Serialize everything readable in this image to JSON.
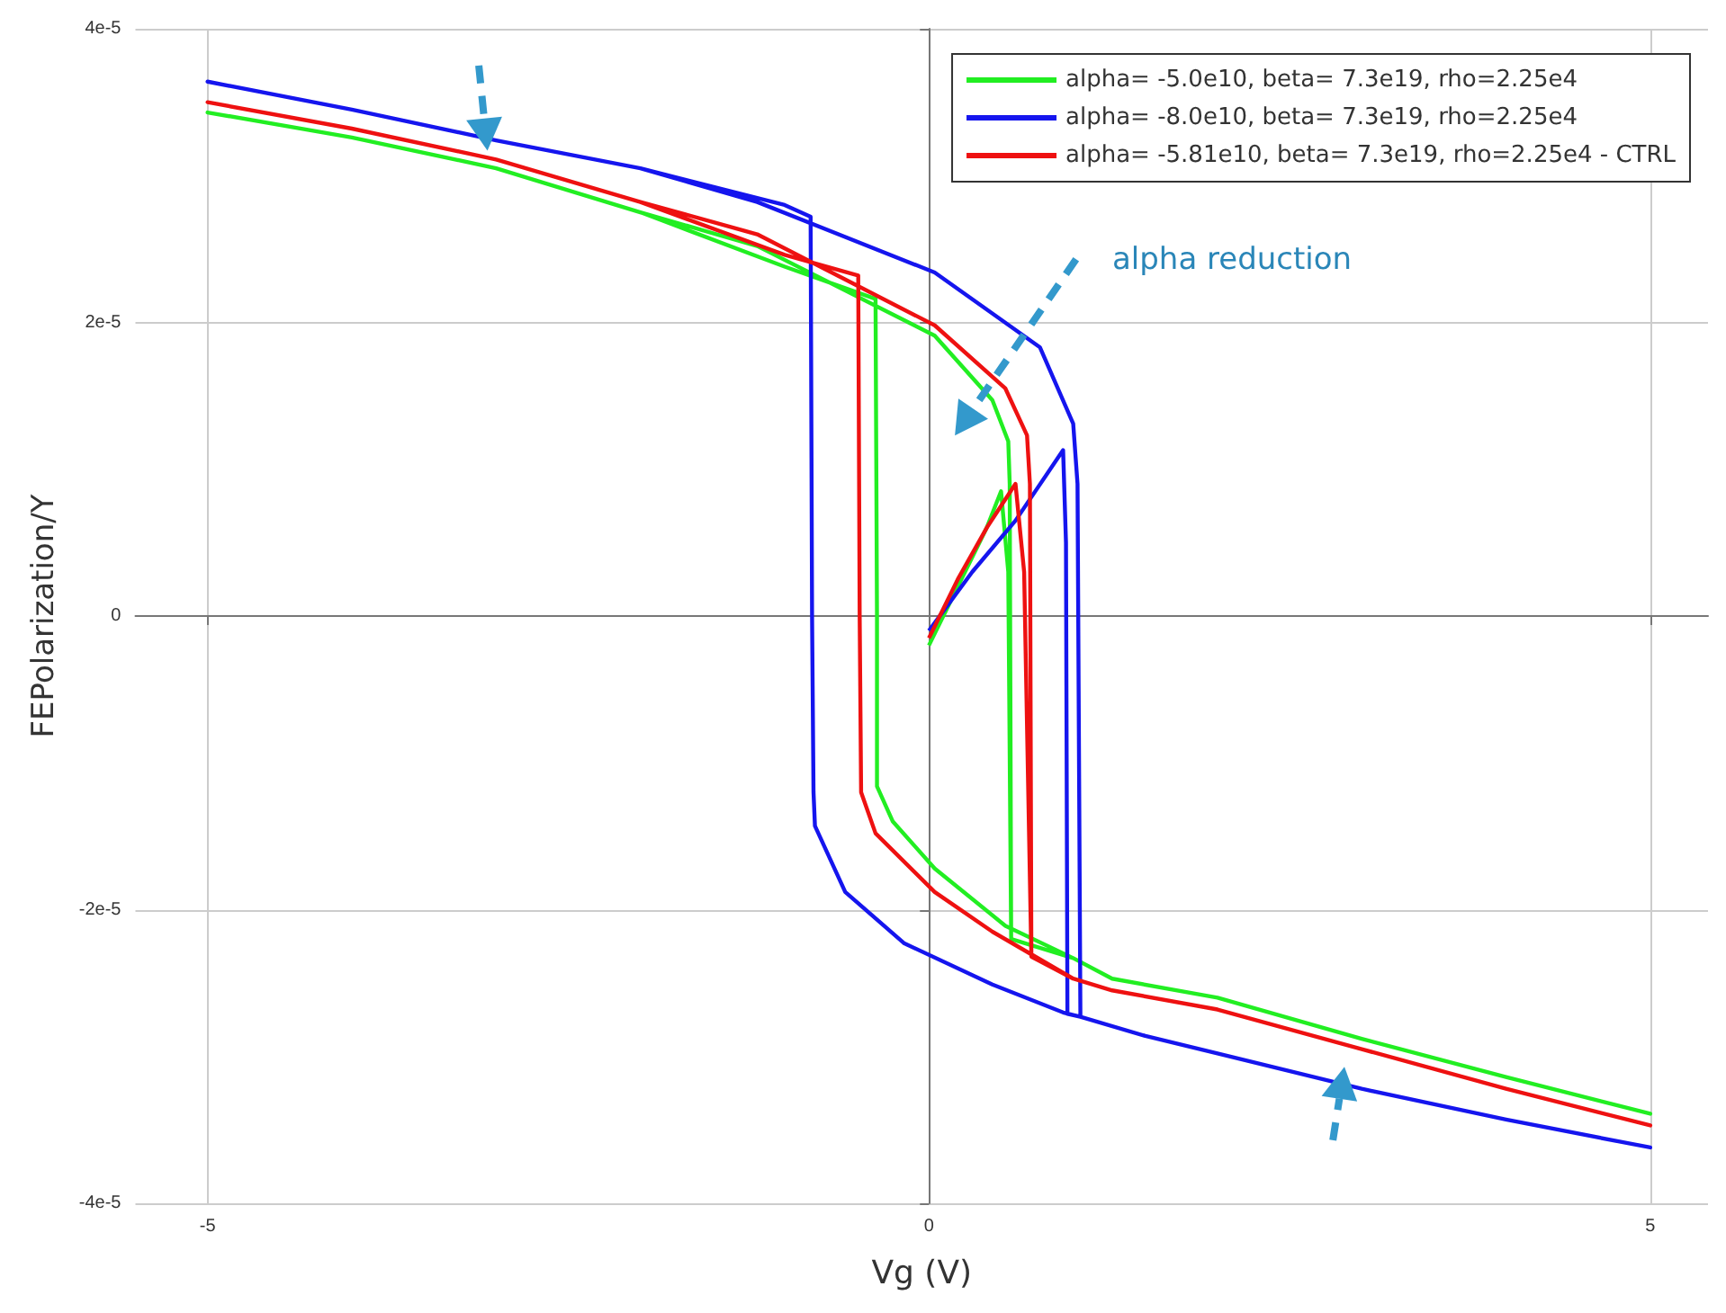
{
  "chart_data": {
    "type": "line",
    "xlabel": "Vg (V)",
    "ylabel": "FEPolarization/Y",
    "xlim": [
      -5.5,
      5.4
    ],
    "xticks": [
      -5,
      0,
      5
    ],
    "ylim": [
      -4e-05,
      4e-05
    ],
    "yticks": [
      {
        "value": -4e-05,
        "label": "-4e-5"
      },
      {
        "value": -2e-05,
        "label": "-2e-5"
      },
      0,
      {
        "value": 2e-05,
        "label": "2e-5"
      },
      {
        "value": 4e-05,
        "label": "4e-5"
      }
    ],
    "grid": true,
    "legend": "top right",
    "marker": "none",
    "line_style": "solid",
    "annotations": [
      "alpha reduction"
    ],
    "series": [
      {
        "name": "alpha= -5.0e10, beta= 7.3e19, rho=2.25e4",
        "color": "#22ee22",
        "x": [
          0,
          0.2,
          0.4,
          0.5,
          0.55,
          0.57,
          1,
          1.27,
          2,
          3,
          4,
          5,
          4,
          3,
          2,
          1.27,
          1,
          0.53,
          0.04,
          -0.25,
          -0.36,
          -0.36,
          -0.37,
          -1,
          -2,
          -3,
          -4,
          -5,
          -4,
          -3,
          -2,
          -1.19,
          0.04,
          0.44,
          0.55,
          0.56,
          0.57
        ],
        "values": [
          -2e-06,
          2e-06,
          6e-06,
          8.5e-06,
          3e-06,
          -2.2e-05,
          -2.33e-05,
          -2.47e-05,
          -2.6e-05,
          -2.88e-05,
          -3.14e-05,
          -3.39e-05,
          -3.14e-05,
          -2.88e-05,
          -2.6e-05,
          -2.47e-05,
          -2.33e-05,
          -2.11e-05,
          -1.72e-05,
          -1.4e-05,
          -1.16e-05,
          0,
          2.16e-05,
          2.38e-05,
          2.75e-05,
          3.05e-05,
          3.26e-05,
          3.43e-05,
          3.26e-05,
          3.05e-05,
          2.75e-05,
          2.52e-05,
          1.91e-05,
          1.47e-05,
          1.19e-05,
          9e-06,
          -2.2e-05
        ]
      },
      {
        "name": "alpha= -8.0e10, beta= 7.3e19, rho=2.25e4",
        "color": "#1515ee",
        "x": [
          0,
          0.3,
          0.6,
          0.93,
          0.95,
          0.96,
          1.05,
          1.5,
          2,
          3,
          4,
          5,
          4,
          3,
          2,
          1.5,
          1.05,
          0.93,
          0.44,
          -0.17,
          -0.58,
          -0.79,
          -0.8,
          -0.81,
          -0.82,
          -1,
          -2,
          -3,
          -4,
          -5,
          -4,
          -3,
          -2,
          -1.19,
          0.04,
          0.77,
          1.0,
          1.03,
          1.05
        ],
        "values": [
          -1e-06,
          3e-06,
          6.5e-06,
          1.13e-05,
          5e-06,
          -2.71e-05,
          -2.73e-05,
          -2.86e-05,
          -2.98e-05,
          -3.22e-05,
          -3.43e-05,
          -3.62e-05,
          -3.43e-05,
          -3.22e-05,
          -2.98e-05,
          -2.86e-05,
          -2.73e-05,
          -2.7e-05,
          -2.51e-05,
          -2.23e-05,
          -1.88e-05,
          -1.43e-05,
          -1.2e-05,
          0,
          2.72e-05,
          2.8e-05,
          3.05e-05,
          3.24e-05,
          3.45e-05,
          3.64e-05,
          3.45e-05,
          3.24e-05,
          3.05e-05,
          2.82e-05,
          2.34e-05,
          1.83e-05,
          1.31e-05,
          9e-06,
          -2.74e-05
        ]
      },
      {
        "name": "alpha= -5.81e10, beta= 7.3e19, rho=2.25e4 - CTRL",
        "color": "#ee1111",
        "x": [
          0,
          0.2,
          0.4,
          0.6,
          0.66,
          0.71,
          1,
          1.27,
          2,
          3,
          4,
          5,
          4,
          3,
          2,
          1.27,
          1,
          0.44,
          0.04,
          -0.37,
          -0.47,
          -0.48,
          -0.49,
          -1,
          -2,
          -3,
          -4,
          -5,
          -4,
          -3,
          -2,
          -1.19,
          0.04,
          0.53,
          0.68,
          0.7,
          0.71
        ],
        "values": [
          -1.5e-06,
          2.5e-06,
          6e-06,
          9e-06,
          3e-06,
          -2.32e-05,
          -2.47e-05,
          -2.55e-05,
          -2.68e-05,
          -2.95e-05,
          -3.22e-05,
          -3.47e-05,
          -3.22e-05,
          -2.95e-05,
          -2.68e-05,
          -2.55e-05,
          -2.47e-05,
          -2.15e-05,
          -1.88e-05,
          -1.48e-05,
          -1.2e-05,
          0,
          2.32e-05,
          2.46e-05,
          2.82e-05,
          3.11e-05,
          3.32e-05,
          3.5e-05,
          3.32e-05,
          3.11e-05,
          2.82e-05,
          2.6e-05,
          1.98e-05,
          1.55e-05,
          1.23e-05,
          9e-06,
          -2.32e-05
        ]
      }
    ]
  }
}
